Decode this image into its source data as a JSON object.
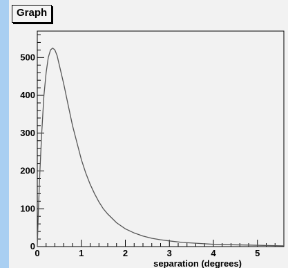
{
  "window": {
    "title": "Graph"
  },
  "colors": {
    "background": "#f2f2f2",
    "left_strip": "#a9cff2",
    "curve": "#555555",
    "axis": "#000000"
  },
  "chart_data": {
    "type": "line",
    "title": "Graph",
    "xlabel": "separation (degrees)",
    "ylabel": "",
    "xlim": [
      0,
      5.6
    ],
    "ylim": [
      0,
      570
    ],
    "x_ticks": [
      0,
      1,
      2,
      3,
      4,
      5
    ],
    "y_ticks": [
      0,
      100,
      200,
      300,
      400,
      500
    ],
    "grid": false,
    "legend": "none",
    "series": [
      {
        "x": [
          0,
          0.03,
          0.06,
          0.1,
          0.15,
          0.2,
          0.25,
          0.3,
          0.35,
          0.4,
          0.45,
          0.5,
          0.6,
          0.7,
          0.8,
          0.9,
          1.0,
          1.1,
          1.2,
          1.3,
          1.4,
          1.5,
          1.6,
          1.8,
          2.0,
          2.2,
          2.4,
          2.6,
          2.8,
          3.0,
          3.3,
          3.6,
          4.0,
          4.4,
          4.8,
          5.2,
          5.6
        ],
        "y": [
          0,
          110,
          200,
          300,
          400,
          460,
          500,
          520,
          525,
          520,
          505,
          480,
          430,
          375,
          320,
          275,
          230,
          195,
          165,
          140,
          118,
          100,
          86,
          63,
          47,
          36,
          28,
          22,
          18,
          15,
          11,
          9,
          6,
          5,
          4,
          3,
          2
        ]
      }
    ]
  }
}
